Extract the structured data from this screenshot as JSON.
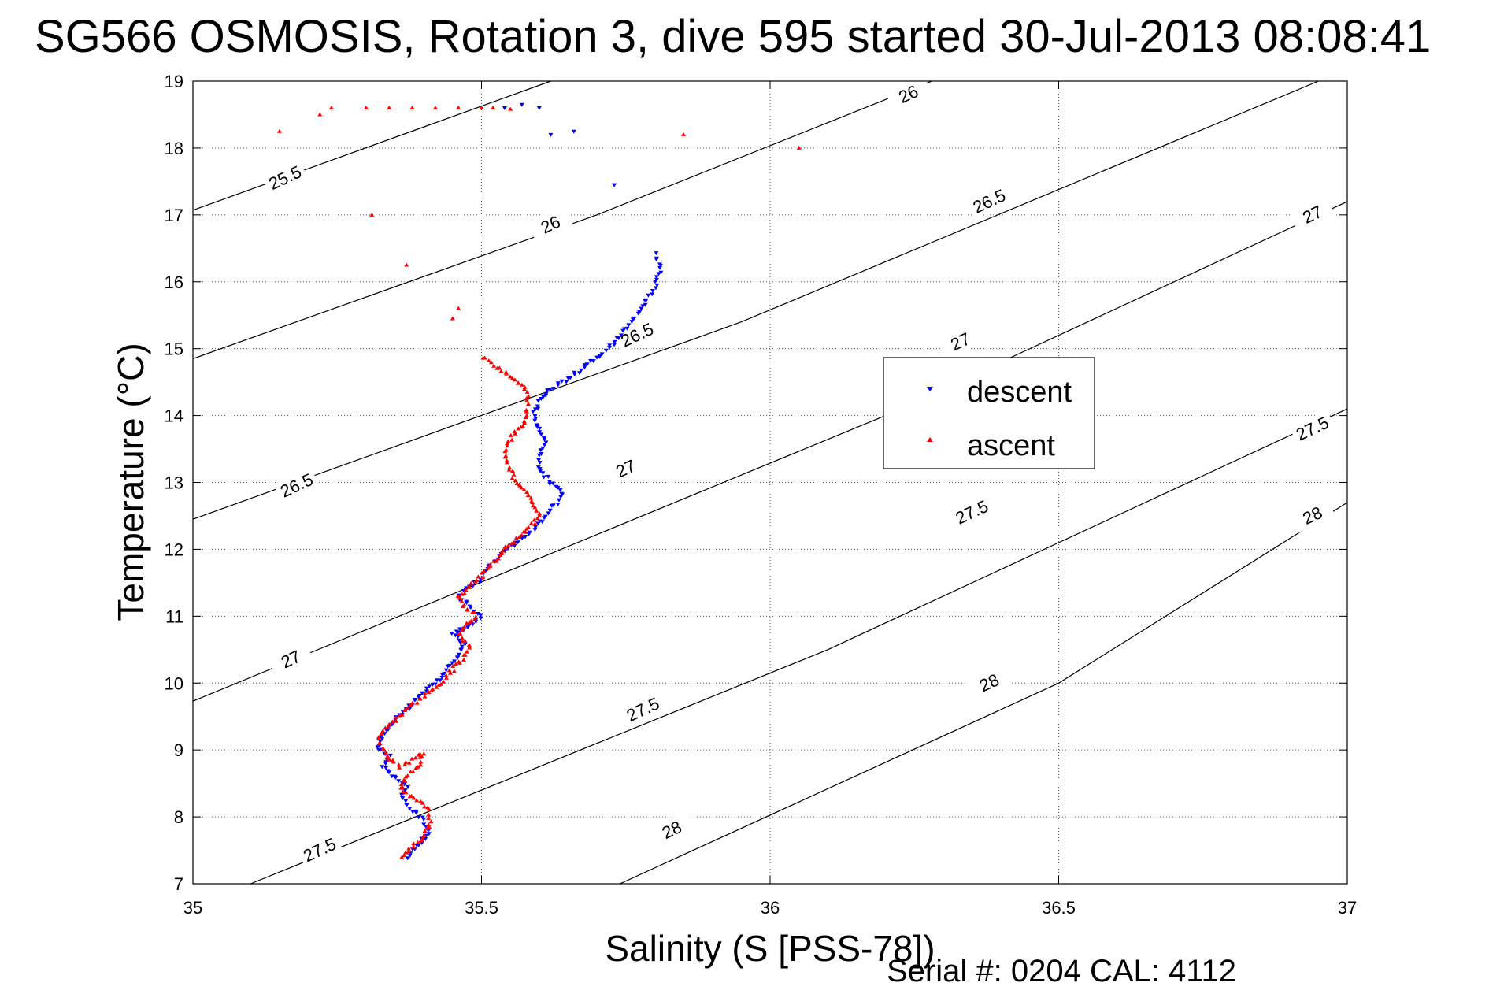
{
  "title": "SG566 OSMOSIS, Rotation 3, dive 595 started 30-Jul-2013 08:08:41",
  "footer": "Serial #: 0204  CAL: 4112",
  "colors": {
    "descent": "#0000ff",
    "ascent": "#ff0000",
    "axis": "#000000",
    "grid": "#555555",
    "contour": "#000000"
  },
  "chart_data": {
    "type": "scatter",
    "xlabel": "Salinity (S [PSS-78])",
    "ylabel": "Temperature (°C)",
    "xlim": [
      35,
      37
    ],
    "ylim": [
      7,
      19
    ],
    "xticks": [
      35,
      35.5,
      36,
      36.5,
      37
    ],
    "xtick_labels": [
      "35",
      "35.5",
      "36",
      "36.5",
      "37"
    ],
    "yticks": [
      7,
      8,
      9,
      10,
      11,
      12,
      13,
      14,
      15,
      16,
      17,
      18,
      19
    ],
    "ytick_labels": [
      "7",
      "8",
      "9",
      "10",
      "11",
      "12",
      "13",
      "14",
      "15",
      "16",
      "17",
      "18",
      "19"
    ],
    "grid": true,
    "legend": {
      "placement": "center-right",
      "entries": [
        "descent",
        "ascent"
      ]
    },
    "contours": [
      {
        "value": "25.5",
        "points": [
          [
            35,
            17.07
          ],
          [
            35.62,
            19
          ]
        ],
        "labels": [
          [
            35.16,
            17.55
          ]
        ]
      },
      {
        "value": "26",
        "points": [
          [
            35,
            14.85
          ],
          [
            35.7,
            17.0
          ],
          [
            36.28,
            19
          ]
        ],
        "labels": [
          [
            35.62,
            16.85
          ],
          [
            36.24,
            18.8
          ]
        ]
      },
      {
        "value": "26.5",
        "points": [
          [
            35,
            12.45
          ],
          [
            35.95,
            15.4
          ],
          [
            36.95,
            19
          ]
        ],
        "labels": [
          [
            35.18,
            12.95
          ],
          [
            35.77,
            15.2
          ],
          [
            36.38,
            17.2
          ]
        ]
      },
      {
        "value": "27",
        "points": [
          [
            35,
            9.73
          ],
          [
            36.2,
            14.0
          ],
          [
            37,
            17.2
          ]
        ],
        "labels": [
          [
            35.17,
            10.35
          ],
          [
            35.75,
            13.2
          ],
          [
            36.33,
            15.1
          ],
          [
            36.94,
            17.0
          ]
        ]
      },
      {
        "value": "27.5",
        "points": [
          [
            35.1,
            7.0
          ],
          [
            36.1,
            10.5
          ],
          [
            37,
            14.1
          ]
        ],
        "labels": [
          [
            35.22,
            7.5
          ],
          [
            35.78,
            9.6
          ],
          [
            36.35,
            12.55
          ],
          [
            36.94,
            13.8
          ]
        ]
      },
      {
        "value": "28",
        "points": [
          [
            35.74,
            7.0
          ],
          [
            36.5,
            10.0
          ],
          [
            37,
            12.7
          ]
        ],
        "labels": [
          [
            35.83,
            7.8
          ],
          [
            36.38,
            10.0
          ],
          [
            36.94,
            12.5
          ]
        ]
      }
    ],
    "series": [
      {
        "name": "descent",
        "marker": "triangle-down",
        "path": [
          [
            35.37,
            7.4
          ],
          [
            35.39,
            7.6
          ],
          [
            35.41,
            7.75
          ],
          [
            35.4,
            7.95
          ],
          [
            35.38,
            8.1
          ],
          [
            35.36,
            8.3
          ],
          [
            35.37,
            8.45
          ],
          [
            35.35,
            8.6
          ],
          [
            35.33,
            8.75
          ],
          [
            35.34,
            8.9
          ],
          [
            35.32,
            9.05
          ],
          [
            35.33,
            9.25
          ],
          [
            35.35,
            9.45
          ],
          [
            35.37,
            9.6
          ],
          [
            35.39,
            9.8
          ],
          [
            35.42,
            10.0
          ],
          [
            35.44,
            10.2
          ],
          [
            35.46,
            10.4
          ],
          [
            35.47,
            10.6
          ],
          [
            35.45,
            10.75
          ],
          [
            35.48,
            10.85
          ],
          [
            35.5,
            11.0
          ],
          [
            35.48,
            11.15
          ],
          [
            35.46,
            11.3
          ],
          [
            35.48,
            11.45
          ],
          [
            35.5,
            11.55
          ],
          [
            35.51,
            11.7
          ],
          [
            35.53,
            11.9
          ],
          [
            35.56,
            12.1
          ],
          [
            35.59,
            12.3
          ],
          [
            35.61,
            12.5
          ],
          [
            35.63,
            12.7
          ],
          [
            35.64,
            12.85
          ],
          [
            35.62,
            13.0
          ],
          [
            35.6,
            13.2
          ],
          [
            35.6,
            13.4
          ],
          [
            35.61,
            13.6
          ],
          [
            35.6,
            13.8
          ],
          [
            35.59,
            14.0
          ],
          [
            35.6,
            14.2
          ],
          [
            35.62,
            14.4
          ],
          [
            35.65,
            14.55
          ],
          [
            35.69,
            14.8
          ],
          [
            35.72,
            15.0
          ],
          [
            35.76,
            15.4
          ],
          [
            35.8,
            15.9
          ],
          [
            35.81,
            16.2
          ],
          [
            35.8,
            16.45
          ]
        ],
        "extra_points": [
          [
            35.73,
            17.45
          ],
          [
            35.62,
            18.2
          ],
          [
            35.6,
            18.6
          ],
          [
            35.57,
            18.65
          ],
          [
            35.54,
            18.6
          ],
          [
            35.66,
            18.25
          ]
        ]
      },
      {
        "name": "ascent",
        "marker": "triangle-up",
        "path": [
          [
            35.36,
            7.4
          ],
          [
            35.38,
            7.55
          ],
          [
            35.4,
            7.7
          ],
          [
            35.41,
            7.9
          ],
          [
            35.41,
            8.1
          ],
          [
            35.39,
            8.25
          ],
          [
            35.37,
            8.35
          ],
          [
            35.36,
            8.45
          ],
          [
            35.37,
            8.6
          ],
          [
            35.39,
            8.75
          ],
          [
            35.4,
            8.95
          ],
          [
            35.38,
            8.85
          ],
          [
            35.36,
            8.75
          ],
          [
            35.34,
            8.85
          ],
          [
            35.33,
            9.0
          ],
          [
            35.32,
            9.15
          ],
          [
            35.33,
            9.3
          ],
          [
            35.35,
            9.45
          ],
          [
            35.37,
            9.6
          ],
          [
            35.4,
            9.8
          ],
          [
            35.43,
            10.0
          ],
          [
            35.45,
            10.2
          ],
          [
            35.47,
            10.4
          ],
          [
            35.48,
            10.55
          ],
          [
            35.46,
            10.7
          ],
          [
            35.47,
            10.85
          ],
          [
            35.49,
            11.0
          ],
          [
            35.47,
            11.15
          ],
          [
            35.46,
            11.3
          ],
          [
            35.48,
            11.45
          ],
          [
            35.5,
            11.6
          ],
          [
            35.52,
            11.8
          ],
          [
            35.54,
            12.0
          ],
          [
            35.56,
            12.15
          ],
          [
            35.58,
            12.3
          ],
          [
            35.6,
            12.5
          ],
          [
            35.59,
            12.7
          ],
          [
            35.58,
            12.85
          ],
          [
            35.56,
            13.0
          ],
          [
            35.55,
            13.2
          ],
          [
            35.54,
            13.4
          ],
          [
            35.55,
            13.65
          ],
          [
            35.57,
            13.85
          ],
          [
            35.58,
            14.05
          ],
          [
            35.58,
            14.3
          ],
          [
            35.57,
            14.45
          ],
          [
            35.55,
            14.6
          ],
          [
            35.52,
            14.75
          ],
          [
            35.5,
            14.9
          ]
        ],
        "extra_points": [
          [
            35.15,
            18.25
          ],
          [
            35.22,
            18.5
          ],
          [
            35.24,
            18.6
          ],
          [
            35.3,
            18.6
          ],
          [
            35.34,
            18.6
          ],
          [
            35.38,
            18.6
          ],
          [
            35.42,
            18.6
          ],
          [
            35.46,
            18.6
          ],
          [
            35.5,
            18.6
          ],
          [
            35.52,
            18.6
          ],
          [
            35.55,
            18.58
          ],
          [
            35.31,
            17.0
          ],
          [
            35.37,
            16.25
          ],
          [
            35.46,
            15.6
          ],
          [
            35.45,
            15.45
          ],
          [
            35.85,
            18.2
          ],
          [
            36.05,
            18.0
          ]
        ]
      }
    ]
  }
}
